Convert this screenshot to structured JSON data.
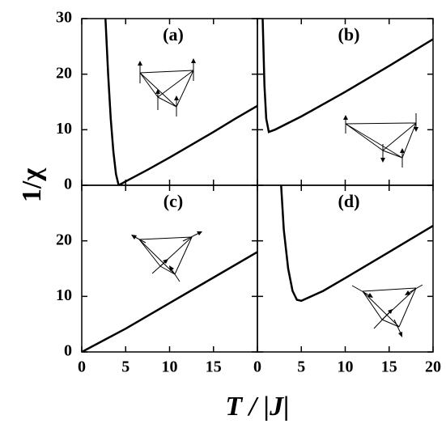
{
  "xlabel": "T / |J|",
  "ylabel": "1/χ",
  "chart_data": [
    {
      "type": "line",
      "title": "(a)",
      "xlim": [
        0,
        20
      ],
      "ylim": [
        0,
        30
      ],
      "yticks": [
        0,
        10,
        20,
        30
      ],
      "color": "#000000",
      "x": [
        2.7,
        3.0,
        3.3,
        3.6,
        3.9,
        4.2,
        5,
        7.5,
        10,
        12.5,
        15,
        17.5,
        20
      ],
      "values": [
        30,
        20,
        12,
        6,
        2,
        0,
        0.7,
        2.8,
        5,
        7.3,
        9.6,
        12,
        14.3
      ]
    },
    {
      "type": "line",
      "title": "(b)",
      "xlim": [
        0,
        20
      ],
      "ylim": [
        0,
        30
      ],
      "color": "#000000",
      "x": [
        0.6,
        0.8,
        1.0,
        1.3,
        2,
        5,
        10,
        15,
        20
      ],
      "values": [
        30,
        18,
        12,
        9.6,
        10,
        12.4,
        16.8,
        21.5,
        26.3
      ]
    },
    {
      "type": "line",
      "title": "(c)",
      "xlim": [
        0,
        20
      ],
      "ylim": [
        0,
        30
      ],
      "yticks": [
        0,
        10,
        20
      ],
      "xticks": [
        0,
        5,
        10,
        15
      ],
      "color": "#000000",
      "x": [
        0,
        5,
        10,
        15,
        20
      ],
      "values": [
        0,
        4.2,
        8.8,
        13.4,
        18
      ]
    },
    {
      "type": "line",
      "title": "(d)",
      "xlim": [
        0,
        20
      ],
      "ylim": [
        0,
        30
      ],
      "xticks": [
        0,
        5,
        10,
        15,
        20
      ],
      "color": "#000000",
      "x": [
        2.7,
        3,
        3.5,
        4,
        4.5,
        5,
        7.5,
        10,
        15,
        20
      ],
      "values": [
        30,
        22,
        15,
        11,
        9.4,
        9.2,
        11,
        13.3,
        18,
        22.7
      ]
    }
  ]
}
